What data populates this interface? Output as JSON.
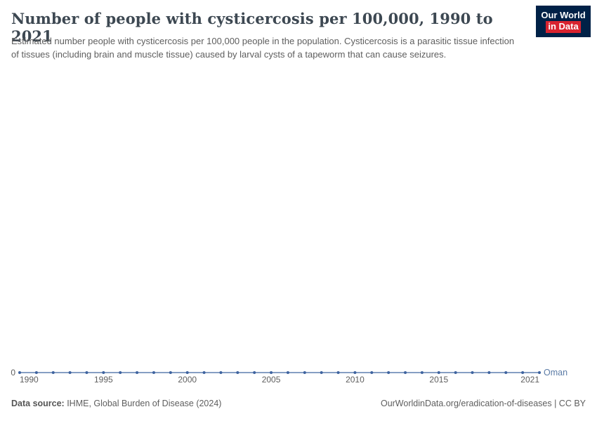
{
  "header": {
    "title": "Number of people with cysticercosis per 100,000, 1990 to 2021",
    "subtitle": "Estimated number people with cysticercosis per 100,000 people in the population. Cysticercosis is a parasitic tissue infection of tissues (including brain and muscle tissue) caused by larval cysts of a tapeworm that can cause seizures.",
    "logo": {
      "line1": "Our World",
      "line2": "in Data",
      "bg_color": "#002147",
      "accent_color": "#d8232f"
    }
  },
  "chart_data": {
    "type": "line",
    "title": "Number of people with cysticercosis per 100,000, 1990 to 2021",
    "xlabel": "",
    "ylabel": "",
    "x": [
      1990,
      1991,
      1992,
      1993,
      1994,
      1995,
      1996,
      1997,
      1998,
      1999,
      2000,
      2001,
      2002,
      2003,
      2004,
      2005,
      2006,
      2007,
      2008,
      2009,
      2010,
      2011,
      2012,
      2013,
      2014,
      2015,
      2016,
      2017,
      2018,
      2019,
      2020,
      2021
    ],
    "series": [
      {
        "name": "Oman",
        "color": "#3e639f",
        "values": [
          0,
          0,
          0,
          0,
          0,
          0,
          0,
          0,
          0,
          0,
          0,
          0,
          0,
          0,
          0,
          0,
          0,
          0,
          0,
          0,
          0,
          0,
          0,
          0,
          0,
          0,
          0,
          0,
          0,
          0,
          0,
          0
        ]
      }
    ],
    "xticks": [
      1990,
      1995,
      2000,
      2005,
      2010,
      2015,
      2021
    ],
    "yticks": [
      0
    ],
    "ylim": [
      0,
      1
    ],
    "grid": false,
    "legend_position": "end-of-line",
    "entity_label_color": "#5b7ba6",
    "marker": "circle"
  },
  "footer": {
    "data_source_label": "Data source:",
    "data_source_value": " IHME, Global Burden of Disease (2024)",
    "attribution": "OurWorldinData.org/eradication-of-diseases | CC BY"
  }
}
